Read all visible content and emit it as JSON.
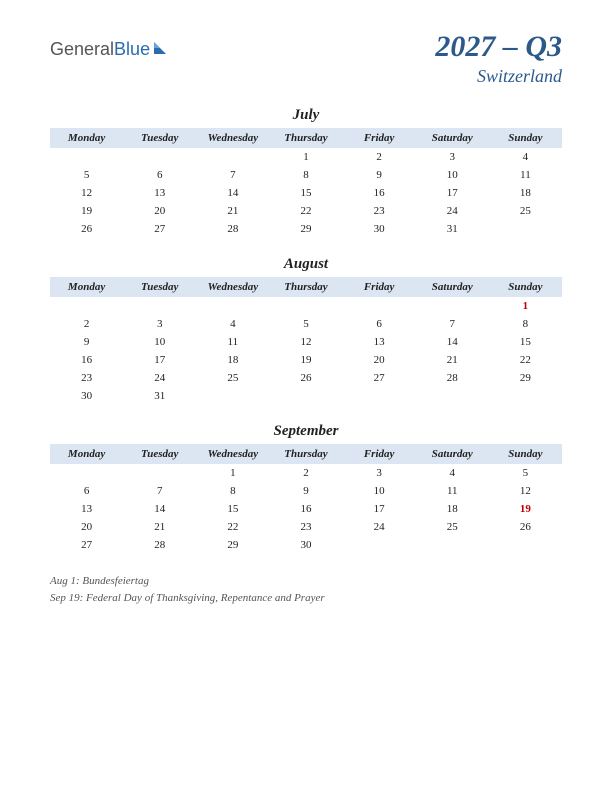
{
  "logo": {
    "part1": "General",
    "part2": "Blue"
  },
  "title": {
    "quarter": "2027 – Q3",
    "country": "Switzerland"
  },
  "colors": {
    "header_bg": "#dce6f2",
    "title_color": "#2b5a8a",
    "holiday_color": "#c00000",
    "text_color": "#222222",
    "notes_color": "#555555",
    "logo_blue": "#2b6cb0"
  },
  "day_headers": [
    "Monday",
    "Tuesday",
    "Wednesday",
    "Thursday",
    "Friday",
    "Saturday",
    "Sunday"
  ],
  "months": [
    {
      "name": "July",
      "weeks": [
        [
          "",
          "",
          "",
          "1",
          "2",
          "3",
          "4"
        ],
        [
          "5",
          "6",
          "7",
          "8",
          "9",
          "10",
          "11"
        ],
        [
          "12",
          "13",
          "14",
          "15",
          "16",
          "17",
          "18"
        ],
        [
          "19",
          "20",
          "21",
          "22",
          "23",
          "24",
          "25"
        ],
        [
          "26",
          "27",
          "28",
          "29",
          "30",
          "31",
          ""
        ]
      ],
      "holidays": []
    },
    {
      "name": "August",
      "weeks": [
        [
          "",
          "",
          "",
          "",
          "",
          "",
          "1"
        ],
        [
          "2",
          "3",
          "4",
          "5",
          "6",
          "7",
          "8"
        ],
        [
          "9",
          "10",
          "11",
          "12",
          "13",
          "14",
          "15"
        ],
        [
          "16",
          "17",
          "18",
          "19",
          "20",
          "21",
          "22"
        ],
        [
          "23",
          "24",
          "25",
          "26",
          "27",
          "28",
          "29"
        ],
        [
          "30",
          "31",
          "",
          "",
          "",
          "",
          ""
        ]
      ],
      "holidays": [
        "1"
      ]
    },
    {
      "name": "September",
      "weeks": [
        [
          "",
          "",
          "1",
          "2",
          "3",
          "4",
          "5"
        ],
        [
          "6",
          "7",
          "8",
          "9",
          "10",
          "11",
          "12"
        ],
        [
          "13",
          "14",
          "15",
          "16",
          "17",
          "18",
          "19"
        ],
        [
          "20",
          "21",
          "22",
          "23",
          "24",
          "25",
          "26"
        ],
        [
          "27",
          "28",
          "29",
          "30",
          "",
          "",
          ""
        ]
      ],
      "holidays": [
        "19"
      ]
    }
  ],
  "notes": [
    "Aug 1: Bundesfeiertag",
    "Sep 19: Federal Day of Thanksgiving, Repentance and Prayer"
  ]
}
